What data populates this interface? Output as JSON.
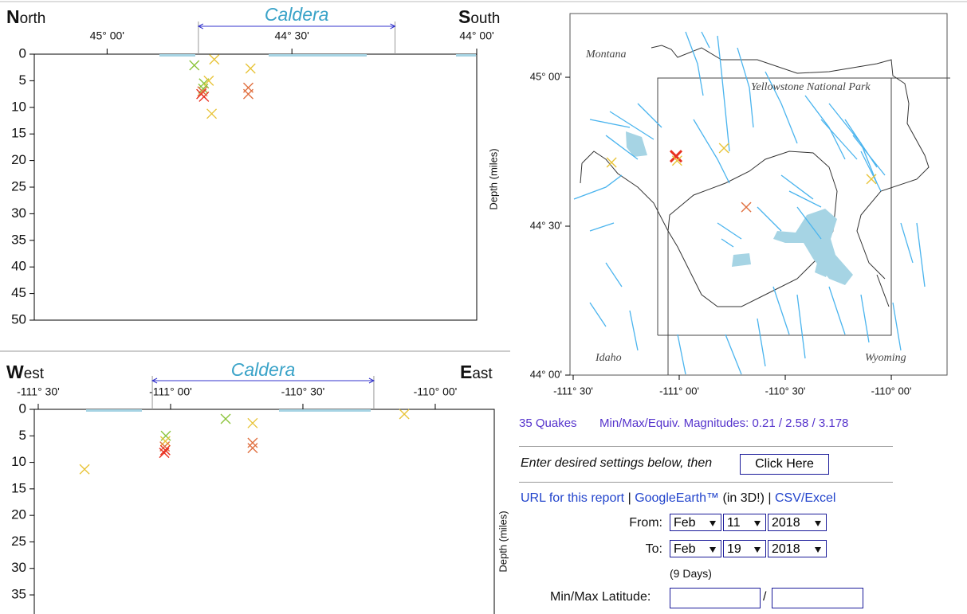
{
  "chart_data": [
    {
      "type": "scatter",
      "left_label": "North",
      "right_label": "South",
      "annotation": "Caldera",
      "annotation_range": [
        44.753,
        44.221
      ],
      "ylabel": "Depth (miles)",
      "xlim": [
        45.197,
        44.0
      ],
      "xticks": [
        {
          "value": 45,
          "label": "45° 00'"
        },
        {
          "value": 44.5,
          "label": "44° 30'"
        },
        {
          "value": 44,
          "label": "44° 00'"
        }
      ],
      "ylim": [
        0,
        50
      ],
      "yticks": [
        0,
        5,
        10,
        15,
        20,
        25,
        30,
        35,
        40,
        45,
        50
      ],
      "y_inverted": true,
      "x": [
        44.764,
        44.71,
        44.738,
        44.725,
        44.74,
        44.745,
        44.738,
        44.742,
        44.717,
        44.618,
        44.618,
        44.612
      ],
      "values": [
        2.1,
        1.0,
        5.5,
        5.0,
        6.5,
        7.5,
        8.0,
        7.0,
        11.2,
        6.3,
        7.5,
        2.7
      ],
      "colors": [
        "#8cc43c",
        "#e8c43a",
        "#8cc43c",
        "#e8c43a",
        "#8cc43c",
        "#e83020",
        "#e83020",
        "#e07040",
        "#e8c43a",
        "#e07040",
        "#e07040",
        "#e8c43a"
      ]
    },
    {
      "type": "scatter",
      "left_label": "West",
      "right_label": "East",
      "annotation": "Caldera",
      "annotation_range": [
        -111.069,
        -110.232
      ],
      "ylabel": "Depth (miles)",
      "xlim": [
        -111.515,
        -109.777
      ],
      "xticks": [
        {
          "value": -111.5,
          "label": "-111° 30'"
        },
        {
          "value": -111,
          "label": "-111° 00'"
        },
        {
          "value": -110.5,
          "label": "-110° 30'"
        },
        {
          "value": -110,
          "label": "-110° 00'"
        }
      ],
      "ylim": [
        0,
        38.6
      ],
      "yticks": [
        0,
        5,
        10,
        15,
        20,
        25,
        30,
        35
      ],
      "y_inverted": true,
      "x": [
        -111.325,
        -111.018,
        -111.02,
        -111.022,
        -111.02,
        -111.024,
        -110.792,
        -110.69,
        -110.69,
        -110.69,
        -110.117
      ],
      "values": [
        11.3,
        5.0,
        6.0,
        7.0,
        7.7,
        8.2,
        1.8,
        2.6,
        6.3,
        7.3,
        0.9
      ],
      "colors": [
        "#e8c43a",
        "#8cc43c",
        "#e8c43a",
        "#e07040",
        "#e83020",
        "#e83020",
        "#8cc43c",
        "#e8c43a",
        "#e07040",
        "#e07040",
        "#e8c43a"
      ]
    },
    {
      "type": "map",
      "labels": [
        "Montana",
        "Yellowstone National Park",
        "Idaho",
        "Wyoming"
      ],
      "xlim": [
        -111.515,
        -109.737
      ],
      "xticks": [
        {
          "value": -111.5,
          "label": "-111° 30'"
        },
        {
          "value": -111,
          "label": "-111° 00'"
        },
        {
          "value": -110.5,
          "label": "-110° 30'"
        },
        {
          "value": -110,
          "label": "-110° 00'"
        }
      ],
      "ylim": [
        44.0,
        45.214
      ],
      "yticks": [
        {
          "value": 45,
          "label": "45° 00'"
        },
        {
          "value": 44.5,
          "label": "44° 30'"
        },
        {
          "value": 44,
          "label": "44° 00'"
        }
      ],
      "x": [
        -111.015,
        -111.01,
        -110.789,
        -111.319,
        -110.684,
        -110.094
      ],
      "values": [
        44.735,
        44.72,
        44.762,
        44.714,
        44.564,
        44.658
      ],
      "colors": [
        "#e83020",
        "#e8c43a",
        "#e8c43a",
        "#e8c43a",
        "#e07040",
        "#e8c43a"
      ]
    }
  ],
  "summary": {
    "count": "35 Quakes",
    "magnitudes": "Min/Max/Equiv. Magnitudes: 0.21 / 2.58 / 3.178"
  },
  "form": {
    "prompt": "Enter desired settings below, then",
    "button": "Click Here",
    "links": [
      "URL for this report",
      "|",
      "GoogleEarth™",
      "(in 3D!)",
      "|",
      "CSV/Excel"
    ],
    "from_label": "From:",
    "from": [
      "Feb",
      "11",
      "2018"
    ],
    "to_label": "To:",
    "to": [
      "Feb",
      "19",
      "2018"
    ],
    "duration": "(9 Days)",
    "latitude_label": "Min/Max Latitude:",
    "latitude_separator": "/"
  }
}
